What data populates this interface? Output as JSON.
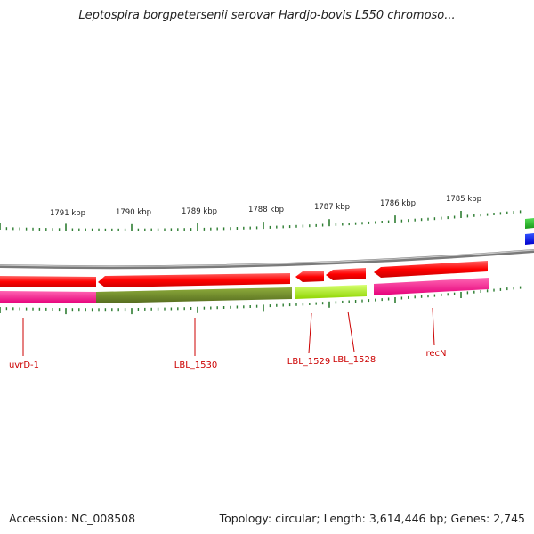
{
  "title": "Leptospira borgpetersenii serovar Hardjo-bovis L550 chromoso...",
  "footer": {
    "accession": "Accession: NC_008508",
    "topology": "Topology: circular; Length: 3,614,446 bp; Genes: 2,745"
  },
  "ruler": {
    "tick_labels": [
      "1791 kbp",
      "1790 kbp",
      "1789 kbp",
      "1788 kbp",
      "1787 kbp",
      "1786 kbp",
      "1785 kbp"
    ]
  },
  "genes": {
    "labels": [
      "uvrD-1",
      "LBL_1530",
      "LBL_1529",
      "LBL_1528",
      "recN"
    ]
  },
  "colors": {
    "forward_cds": "#ff1a1a",
    "reverse_cds": "#ff0000",
    "track_magenta": "#ff3399",
    "track_olive": "#6b8e23",
    "track_lime": "#adff2f",
    "backbone": "#999999",
    "label_red": "#cc0000",
    "tick_green": "#2e7d32"
  }
}
